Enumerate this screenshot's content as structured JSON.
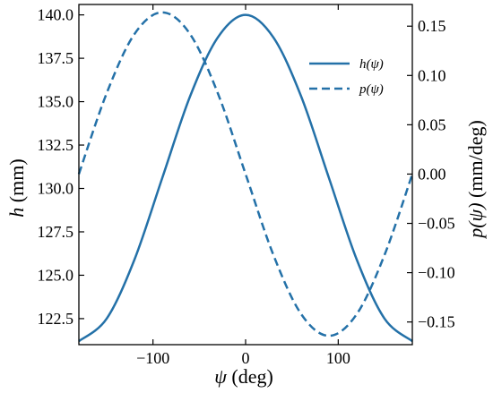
{
  "chart_data": {
    "type": "line",
    "xlabel": {
      "var": "ψ",
      "unit": " (deg)"
    },
    "ylabel_left": {
      "var": "h",
      "unit": " (mm)"
    },
    "ylabel_right": {
      "var": "p(ψ)",
      "unit": " (mm/deg)"
    },
    "xlim": [
      -180,
      180
    ],
    "ylim_left": [
      121.0,
      140.6
    ],
    "ylim_right": [
      -0.173,
      0.172
    ],
    "x_ticks": [
      -100,
      0,
      100
    ],
    "x_tick_labels": [
      "−100",
      "0",
      "100"
    ],
    "y_left_ticks": [
      122.5,
      125.0,
      127.5,
      130.0,
      132.5,
      135.0,
      137.5,
      140.0
    ],
    "y_left_tick_labels": [
      "122.5",
      "125.0",
      "127.5",
      "130.0",
      "132.5",
      "135.0",
      "137.5",
      "140.0"
    ],
    "y_right_ticks": [
      -0.15,
      -0.1,
      -0.05,
      0.0,
      0.05,
      0.1,
      0.15
    ],
    "y_right_tick_labels": [
      "−0.15",
      "−0.10",
      "−0.05",
      "0.00",
      "0.05",
      "0.10",
      "0.15"
    ],
    "grid": false,
    "legend_position": "top-right",
    "series": [
      {
        "name": "h(ψ)",
        "axis": "left",
        "style": "solid",
        "color": "#2471a8",
        "x": [
          -180,
          -150,
          -120,
          -90,
          -60,
          -30,
          0,
          30,
          60,
          90,
          120,
          150,
          180
        ],
        "y": [
          121.2,
          122.5,
          125.9,
          130.6,
          135.3,
          138.7,
          140.0,
          138.7,
          135.3,
          130.6,
          125.9,
          122.5,
          121.2
        ]
      },
      {
        "name": "p(ψ)",
        "axis": "right",
        "style": "dashed",
        "color": "#2471a8",
        "x": [
          -180,
          -150,
          -120,
          -90,
          -60,
          -30,
          0,
          30,
          60,
          90,
          120,
          150,
          180
        ],
        "y": [
          0.0,
          0.082,
          0.142,
          0.164,
          0.142,
          0.082,
          0.0,
          -0.082,
          -0.142,
          -0.164,
          -0.142,
          -0.082,
          0.0
        ]
      }
    ]
  }
}
